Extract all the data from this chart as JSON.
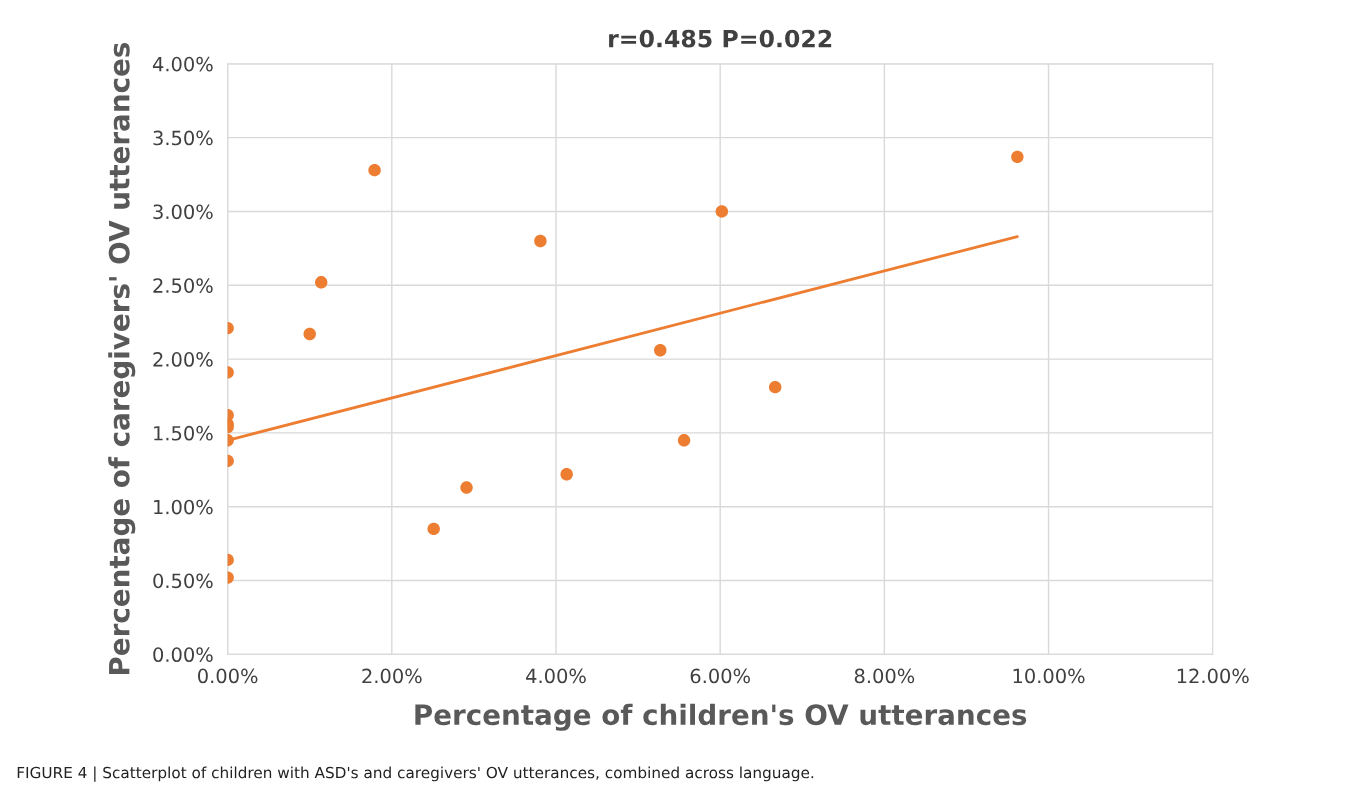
{
  "chart_data": {
    "type": "scatter",
    "title": "r=0.485 P=0.022",
    "xlabel": "Percentage of children's OV utterances",
    "ylabel": "Percentage of caregivers' OV utterances",
    "annotations": [
      "FIGURE 4 | Scatterplot of children with ASD's and caregivers' OV utterances, combined across language."
    ],
    "series": [
      {
        "marker": "circle",
        "color": "#ed7d31",
        "x": [
          0,
          0,
          0,
          0,
          0,
          0,
          0,
          0,
          0,
          1.0,
          1.14,
          1.79,
          2.51,
          2.91,
          3.81,
          4.13,
          5.27,
          5.56,
          6.02,
          6.67,
          9.62
        ],
        "values": [
          2.21,
          1.91,
          1.62,
          1.56,
          1.54,
          1.45,
          1.31,
          0.64,
          0.52,
          2.17,
          2.52,
          3.28,
          0.85,
          1.13,
          2.8,
          1.22,
          2.06,
          1.45,
          3.0,
          1.81,
          3.37
        ]
      },
      {
        "type": "line",
        "marker": "none",
        "color": "#ed7d31",
        "x": [
          0,
          9.62
        ],
        "values": [
          1.45,
          2.83
        ]
      }
    ],
    "grid": true,
    "legend": false,
    "xlim": [
      0,
      12
    ],
    "ylim": [
      0,
      4
    ],
    "xticks": [
      {
        "value": 0,
        "label": "0.00%"
      },
      {
        "value": 2,
        "label": "2.00%"
      },
      {
        "value": 4,
        "label": "4.00%"
      },
      {
        "value": 6,
        "label": "6.00%"
      },
      {
        "value": 8,
        "label": "8.00%"
      },
      {
        "value": 10,
        "label": "10.00%"
      },
      {
        "value": 12,
        "label": "12.00%"
      }
    ],
    "yticks": [
      {
        "value": 0,
        "label": "0.00%"
      },
      {
        "value": 0.5,
        "label": "0.50%"
      },
      {
        "value": 1,
        "label": "1.00%"
      },
      {
        "value": 1.5,
        "label": "1.50%"
      },
      {
        "value": 2,
        "label": "2.00%"
      },
      {
        "value": 2.5,
        "label": "2.50%"
      },
      {
        "value": 3,
        "label": "3.00%"
      },
      {
        "value": 3.5,
        "label": "3.50%"
      },
      {
        "value": 4,
        "label": "4.00%"
      }
    ]
  }
}
